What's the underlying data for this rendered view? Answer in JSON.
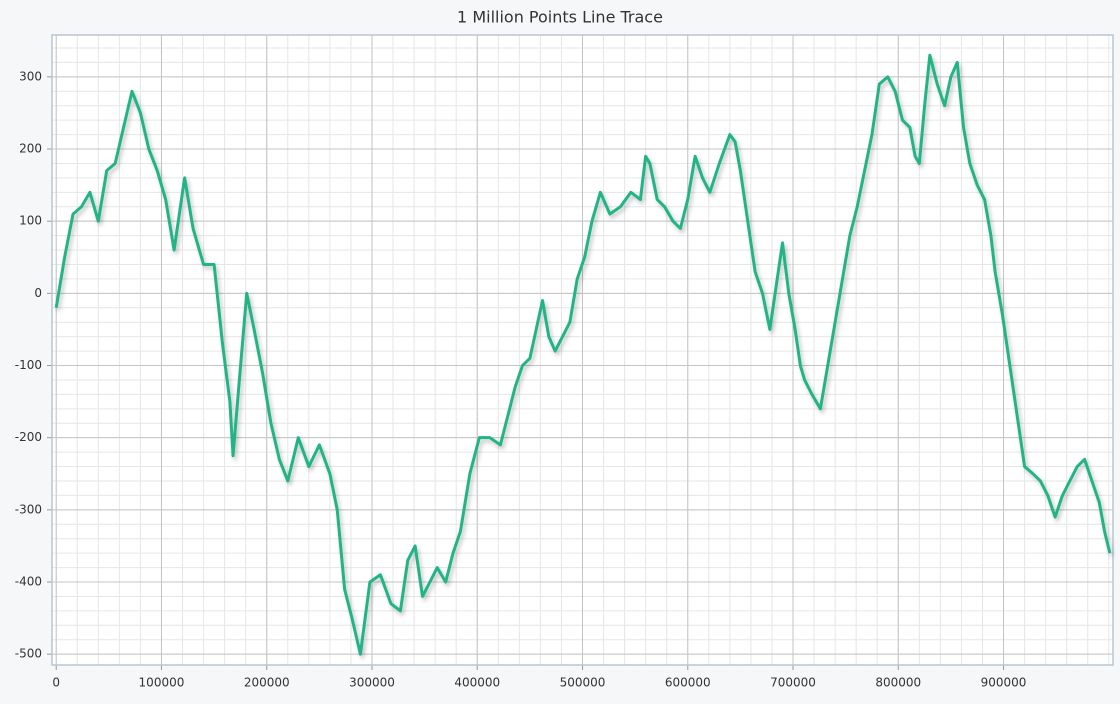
{
  "chart_data": {
    "type": "line",
    "title": "1 Million Points Line Trace",
    "color": "#20b486",
    "x": [
      0,
      8000,
      16000,
      24000,
      32000,
      40000,
      48000,
      56000,
      64000,
      72000,
      80000,
      88000,
      96000,
      104000,
      112000,
      122000,
      130000,
      140000,
      150000,
      158000,
      165000,
      168000,
      174000,
      181000,
      188000,
      196000,
      204000,
      212000,
      220000,
      230000,
      240000,
      250000,
      260000,
      267000,
      274000,
      281000,
      289000,
      298000,
      308000,
      318000,
      327000,
      334000,
      341000,
      348000,
      355000,
      362000,
      370000,
      377000,
      384000,
      393000,
      402000,
      412000,
      422000,
      429000,
      436000,
      443000,
      450000,
      456000,
      462000,
      468000,
      474000,
      481000,
      488000,
      495000,
      502000,
      509000,
      517000,
      526000,
      536000,
      546000,
      555000,
      560000,
      564000,
      571000,
      578000,
      586000,
      593000,
      600000,
      607000,
      614000,
      621000,
      630000,
      640000,
      645000,
      650000,
      657000,
      664000,
      671000,
      678000,
      684000,
      690000,
      696000,
      702000,
      707000,
      711000,
      718000,
      726000,
      733000,
      740000,
      747000,
      754000,
      761000,
      768000,
      775000,
      782000,
      790000,
      797000,
      804000,
      811000,
      816000,
      820000,
      825000,
      830000,
      837000,
      844000,
      850000,
      856000,
      862000,
      868000,
      875000,
      882000,
      888000,
      892000,
      899000,
      906000,
      913000,
      920000,
      928000,
      935000,
      942000,
      949000,
      956000,
      963000,
      970000,
      977000,
      984000,
      991000,
      996000,
      1001000
    ],
    "values": [
      -20,
      50,
      110,
      120,
      140,
      100,
      170,
      180,
      230,
      280,
      250,
      200,
      170,
      130,
      60,
      160,
      90,
      40,
      40,
      -70,
      -150,
      -225,
      -120,
      0,
      -50,
      -110,
      -180,
      -230,
      -260,
      -200,
      -240,
      -210,
      -250,
      -300,
      -410,
      -450,
      -500,
      -400,
      -390,
      -430,
      -440,
      -370,
      -350,
      -420,
      -400,
      -380,
      -400,
      -360,
      -330,
      -250,
      -200,
      -200,
      -210,
      -170,
      -130,
      -100,
      -90,
      -50,
      -10,
      -60,
      -80,
      -60,
      -40,
      20,
      50,
      100,
      140,
      110,
      120,
      140,
      130,
      190,
      180,
      130,
      120,
      100,
      90,
      130,
      190,
      160,
      140,
      180,
      220,
      210,
      170,
      100,
      30,
      0,
      -50,
      10,
      70,
      0,
      -50,
      -100,
      -120,
      -140,
      -160,
      -100,
      -40,
      20,
      80,
      120,
      170,
      220,
      290,
      300,
      280,
      240,
      230,
      190,
      180,
      260,
      330,
      290,
      260,
      300,
      320,
      230,
      180,
      150,
      130,
      80,
      30,
      -30,
      -100,
      -170,
      -240,
      -250,
      -260,
      -280,
      -310,
      -280,
      -260,
      -240,
      -230,
      -260,
      -290,
      -330,
      -360
    ],
    "xlim": [
      -4000,
      1004000
    ],
    "xticks": [
      0,
      100000,
      200000,
      300000,
      400000,
      500000,
      600000,
      700000,
      800000,
      900000
    ],
    "ylim": [
      -515,
      358
    ],
    "yticks": [
      -500,
      -400,
      -300,
      -200,
      -100,
      0,
      100,
      200,
      300
    ],
    "grid": true
  }
}
